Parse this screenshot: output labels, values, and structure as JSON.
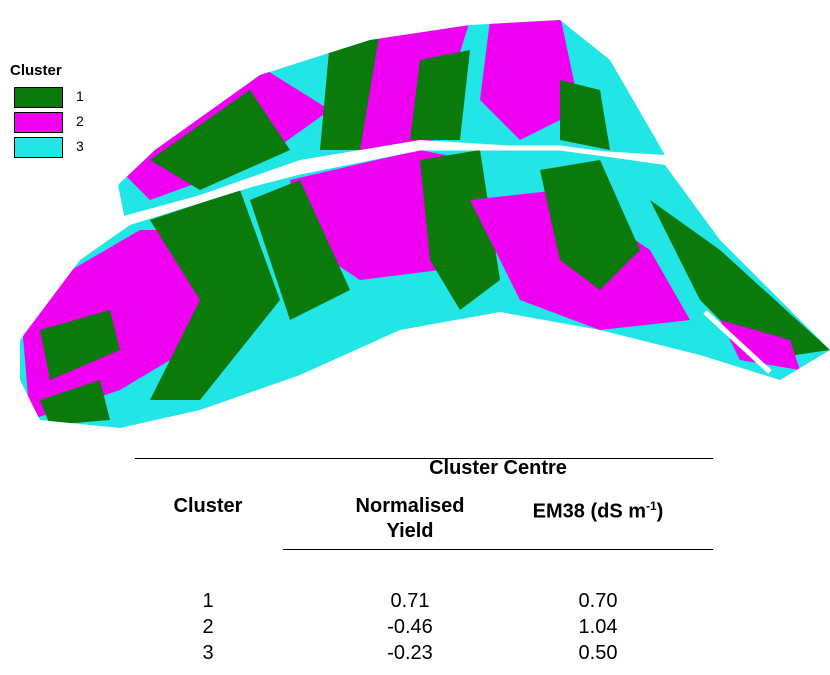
{
  "legend": {
    "title": "Cluster",
    "items": [
      {
        "label": "1",
        "color": "#0a7a0a"
      },
      {
        "label": "2",
        "color": "#f000f0"
      },
      {
        "label": "3",
        "color": "#22e5e5"
      }
    ]
  },
  "table": {
    "group_header": "Cluster Centre",
    "columns": [
      "Cluster",
      "Normalised Yield",
      [
        "EM38 (dS m",
        "-1",
        ")"
      ]
    ],
    "rows": [
      [
        "1",
        "0.71",
        "0.70"
      ],
      [
        "2",
        "-0.46",
        "1.04"
      ],
      [
        "3",
        "-0.23",
        "0.50"
      ]
    ]
  }
}
